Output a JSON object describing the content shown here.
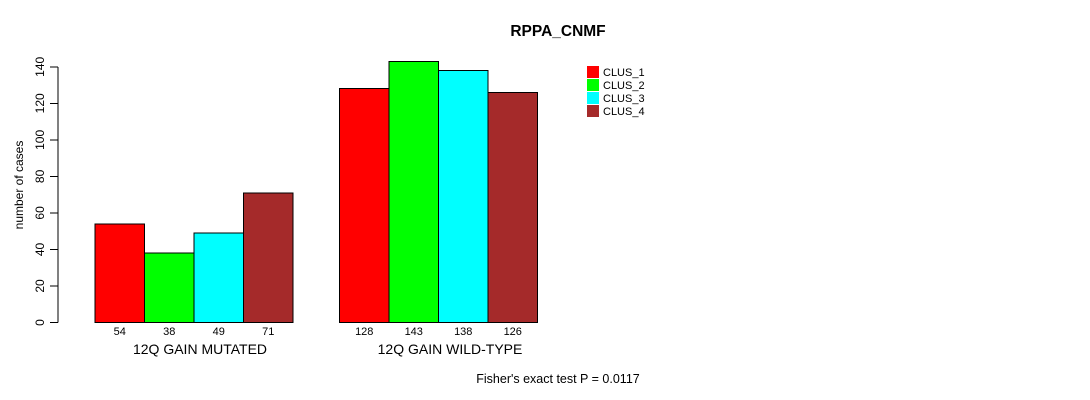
{
  "page": {
    "background_color": "#ffffff",
    "text_color": "#000000"
  },
  "chart_data": {
    "type": "bar",
    "title": "RPPA_CNMF",
    "ylabel": "number of cases",
    "xlabel": "",
    "yticks": [
      0,
      20,
      40,
      60,
      80,
      100,
      120,
      140
    ],
    "ylim": [
      0,
      148
    ],
    "grid": false,
    "legend_position": "top-right",
    "bar_border_color": "#000000",
    "categories": [
      "12Q GAIN MUTATED",
      "12Q GAIN WILD-TYPE"
    ],
    "series": [
      {
        "name": "CLUS_1",
        "color": "#ff0000",
        "values": [
          54,
          128
        ]
      },
      {
        "name": "CLUS_2",
        "color": "#00ff00",
        "values": [
          38,
          143
        ]
      },
      {
        "name": "CLUS_3",
        "color": "#00ffff",
        "values": [
          49,
          138
        ]
      },
      {
        "name": "CLUS_4",
        "color": "#a52a2a",
        "values": [
          71,
          126
        ]
      }
    ],
    "groups": [
      {
        "label": "12Q GAIN MUTATED",
        "values": [
          54,
          38,
          49,
          71
        ]
      },
      {
        "label": "12Q GAIN WILD-TYPE",
        "values": [
          128,
          143,
          138,
          126
        ]
      }
    ],
    "annotation": "Fisher's exact test P = 0.0117"
  }
}
